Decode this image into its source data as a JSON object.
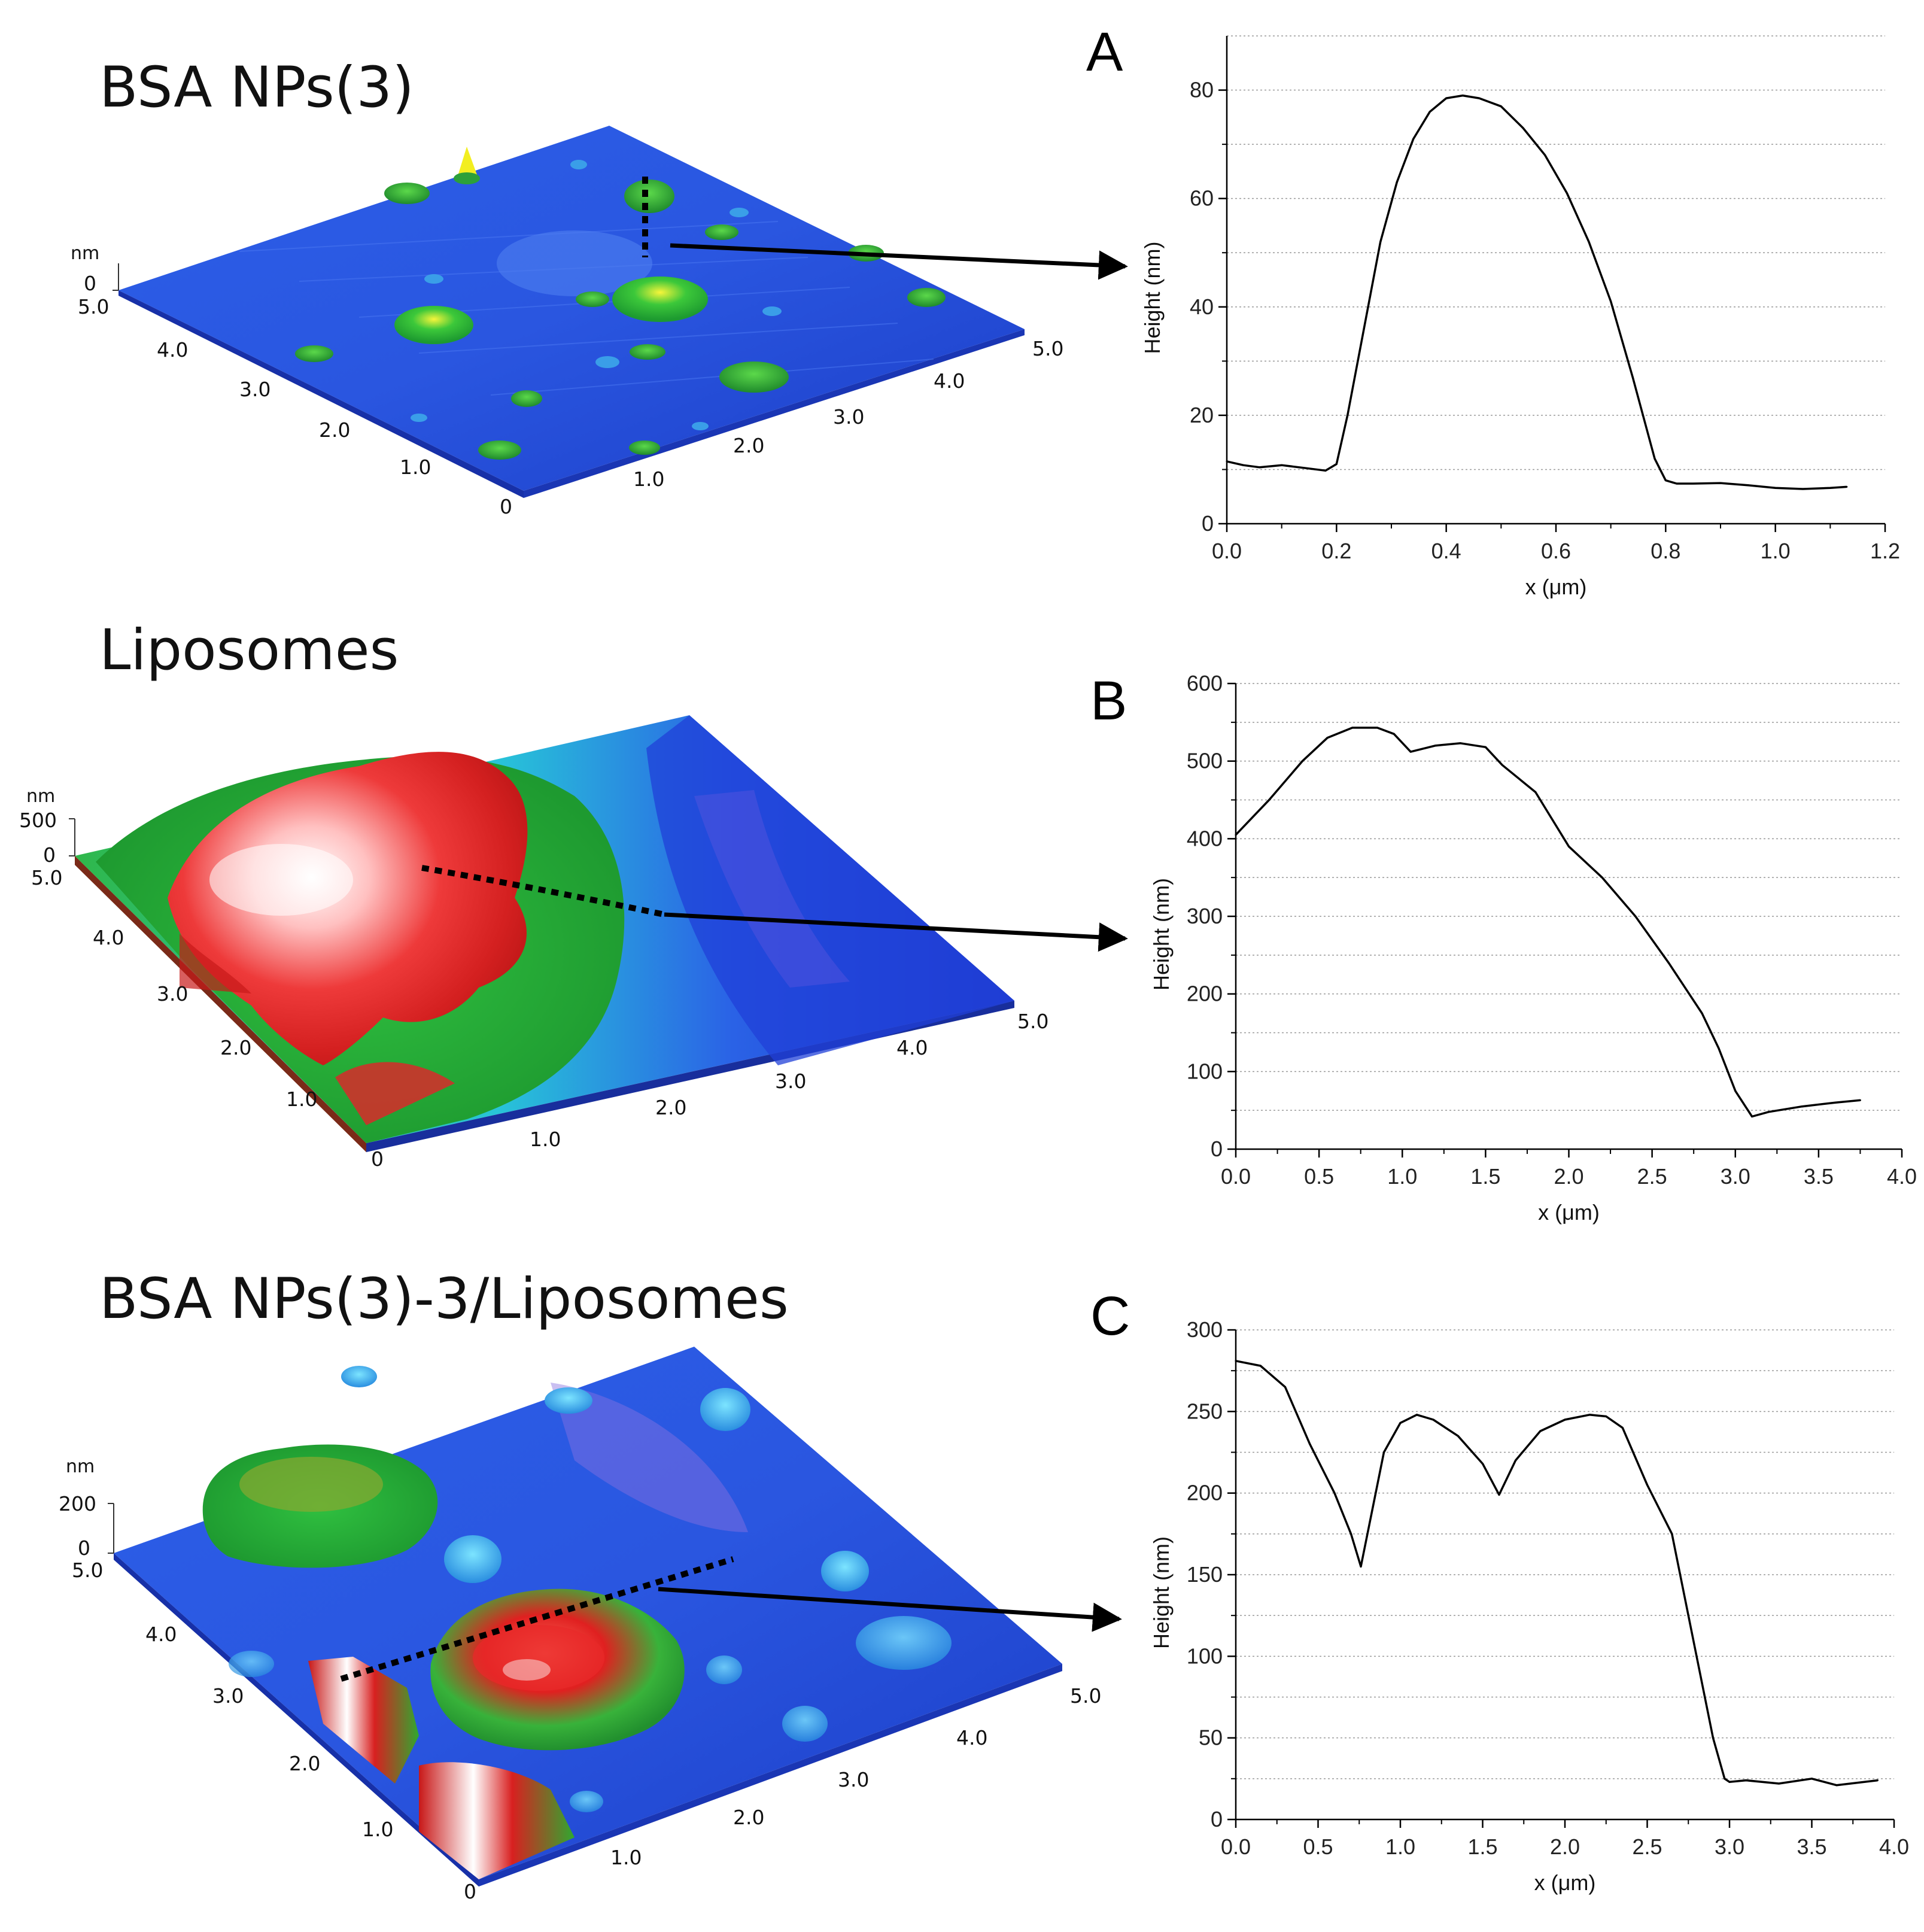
{
  "figure_titles": [
    "BSA NPs(3)",
    "Liposomes",
    "BSA NPs(3)-3/Liposomes"
  ],
  "afm_images": [
    {
      "title": "BSA NPs(3)",
      "z_unit": "nm",
      "z_ticks": [
        "0"
      ],
      "left_axis_ticks": [
        "5.0",
        "4.0",
        "3.0",
        "2.0",
        "1.0",
        "0"
      ],
      "right_axis_ticks": [
        "1.0",
        "2.0",
        "3.0",
        "4.0",
        "5.0"
      ],
      "colors": {
        "low": "#1a3fd6",
        "mid": "#28a83a",
        "high": "#f2ee20"
      }
    },
    {
      "title": "Liposomes",
      "z_unit": "nm",
      "z_ticks": [
        "500",
        "0"
      ],
      "left_axis_ticks": [
        "5.0",
        "4.0",
        "3.0",
        "2.0",
        "1.0",
        "0"
      ],
      "right_axis_ticks": [
        "1.0",
        "2.0",
        "3.0",
        "4.0",
        "5.0"
      ],
      "colors": {
        "low": "#1a3fd6",
        "mid": "#20c040",
        "high": "#e82828",
        "peak": "#ffffff"
      }
    },
    {
      "title": "BSA NPs(3)-3/Liposomes",
      "z_unit": "nm",
      "z_ticks": [
        "200",
        "0"
      ],
      "left_axis_ticks": [
        "5.0",
        "4.0",
        "3.0",
        "2.0",
        "1.0",
        "0"
      ],
      "right_axis_ticks": [
        "1.0",
        "2.0",
        "3.0",
        "4.0",
        "5.0"
      ],
      "colors": {
        "low": "#1a3fd6",
        "mid": "#20b040",
        "high": "#e02020",
        "peak": "#ffffff"
      }
    }
  ],
  "chart_data": [
    {
      "panel": "A",
      "type": "line",
      "xlabel": "x (μm)",
      "ylabel": "Height (nm)",
      "xlim": [
        0,
        1.2
      ],
      "ylim": [
        0,
        90
      ],
      "xticks": [
        "0.0",
        "0.2",
        "0.4",
        "0.6",
        "0.8",
        "1.0",
        "1.2"
      ],
      "yticks": [
        "0",
        "20",
        "40",
        "60",
        "80"
      ],
      "grid": true,
      "x": [
        0,
        0.03,
        0.06,
        0.1,
        0.14,
        0.18,
        0.2,
        0.22,
        0.25,
        0.28,
        0.31,
        0.34,
        0.37,
        0.4,
        0.43,
        0.46,
        0.5,
        0.54,
        0.58,
        0.62,
        0.66,
        0.7,
        0.74,
        0.78,
        0.8,
        0.82,
        0.85,
        0.9,
        0.95,
        1.0,
        1.05,
        1.1,
        1.13
      ],
      "y": [
        11.5,
        10.8,
        10.4,
        10.8,
        10.3,
        9.8,
        11,
        20,
        36,
        52,
        63,
        71,
        76,
        78.5,
        79,
        78.5,
        77,
        73,
        68,
        61,
        52,
        41,
        27,
        12,
        8,
        7.4,
        7.4,
        7.5,
        7.1,
        6.6,
        6.4,
        6.6,
        6.8
      ]
    },
    {
      "panel": "B",
      "type": "line",
      "xlabel": "x (μm)",
      "ylabel": "Height (nm)",
      "xlim": [
        0,
        4.0
      ],
      "ylim": [
        0,
        600
      ],
      "xticks": [
        "0.0",
        "0.5",
        "1.0",
        "1.5",
        "2.0",
        "2.5",
        "3.0",
        "3.5",
        "4.0"
      ],
      "yticks": [
        "0",
        "100",
        "200",
        "300",
        "400",
        "500",
        "600"
      ],
      "grid": true,
      "x": [
        0,
        0.2,
        0.4,
        0.55,
        0.7,
        0.85,
        0.95,
        1.05,
        1.2,
        1.35,
        1.5,
        1.6,
        1.8,
        2.0,
        2.2,
        2.4,
        2.6,
        2.8,
        2.9,
        3.0,
        3.1,
        3.2,
        3.4,
        3.6,
        3.75
      ],
      "y": [
        405,
        450,
        500,
        530,
        543,
        543,
        535,
        512,
        520,
        523,
        518,
        495,
        460,
        390,
        350,
        300,
        240,
        175,
        130,
        75,
        42,
        48,
        55,
        60,
        63
      ]
    },
    {
      "panel": "C",
      "type": "line",
      "xlabel": "x (μm)",
      "ylabel": "Height (nm)",
      "xlim": [
        0,
        4.0
      ],
      "ylim": [
        0,
        300
      ],
      "xticks": [
        "0.0",
        "0.5",
        "1.0",
        "1.5",
        "2.0",
        "2.5",
        "3.0",
        "3.5",
        "4.0"
      ],
      "yticks": [
        "0",
        "50",
        "100",
        "150",
        "200",
        "250",
        "300"
      ],
      "grid": true,
      "x": [
        0,
        0.15,
        0.3,
        0.45,
        0.6,
        0.7,
        0.76,
        0.82,
        0.9,
        1.0,
        1.1,
        1.2,
        1.35,
        1.5,
        1.6,
        1.7,
        1.85,
        2.0,
        2.15,
        2.25,
        2.35,
        2.5,
        2.65,
        2.8,
        2.9,
        2.97,
        3.0,
        3.1,
        3.3,
        3.5,
        3.65,
        3.9
      ],
      "y": [
        281,
        278,
        265,
        230,
        200,
        175,
        155,
        185,
        225,
        243,
        248,
        245,
        235,
        218,
        199,
        220,
        238,
        245,
        248,
        247,
        240,
        205,
        175,
        100,
        50,
        25,
        23,
        24,
        22,
        25,
        21,
        24
      ]
    }
  ]
}
